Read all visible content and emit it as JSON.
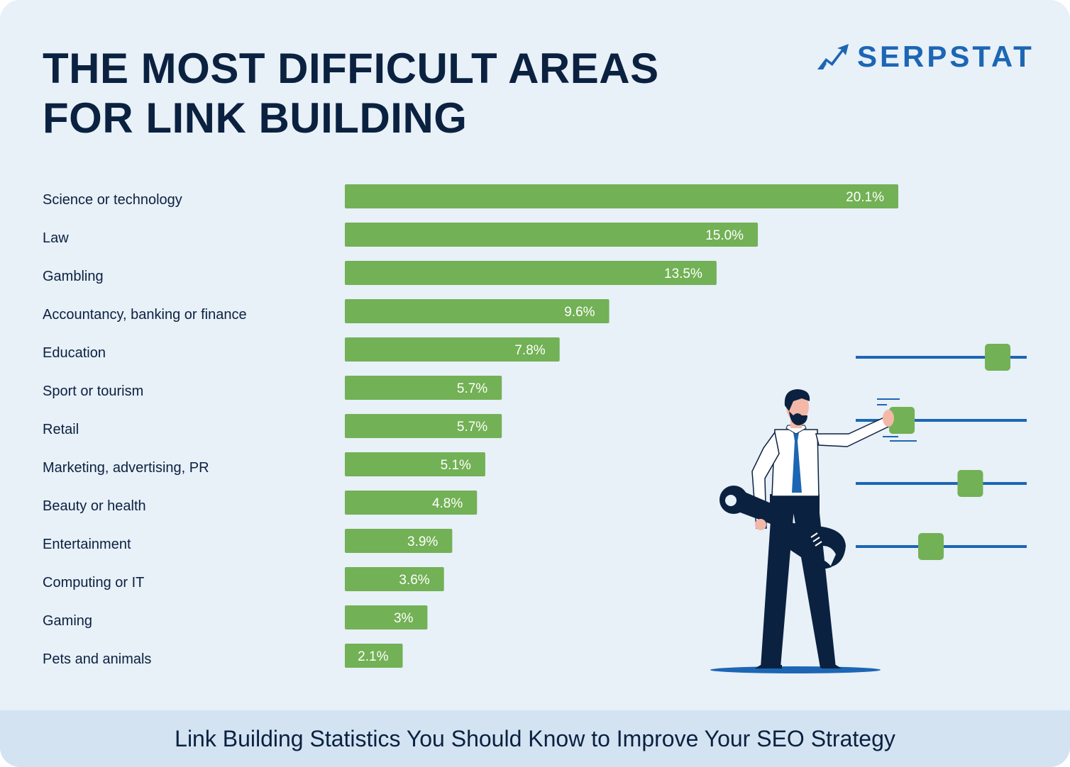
{
  "title_lines": [
    "THE MOST DIFFICULT AREAS",
    "FOR LINK BUILDING"
  ],
  "brand": {
    "name": "SERPSTAT",
    "logo_icon": "serpstat-chart-arrow-icon",
    "color": "#1c66b4"
  },
  "footer": {
    "text": "Link Building Statistics You Should Know to Improve Your SEO Strategy"
  },
  "colors": {
    "bar": "#72b155",
    "background": "#e8f0f8",
    "footer_bg": "#d3e3f2",
    "text": "#0b2140",
    "accent": "#1c66b4"
  },
  "illustration": {
    "subject": "businessman-with-wrench-adjusting-sliders-icon",
    "slider_levels": [
      0.83,
      0.27,
      0.67,
      0.44
    ]
  },
  "chart_data": {
    "type": "bar",
    "orientation": "horizontal",
    "title": "THE MOST DIFFICULT AREAS FOR LINK BUILDING",
    "xlabel": "",
    "ylabel": "",
    "grid": false,
    "legend": "none",
    "xlim": [
      0,
      20.1
    ],
    "categories": [
      "Science or technology",
      "Law",
      "Gambling",
      "Accountancy, banking or finance",
      "Education",
      "Sport or tourism",
      "Retail",
      "Marketing, advertising, PR",
      "Beauty or health",
      "Entertainment",
      "Computing or IT",
      "Gaming",
      "Pets and animals"
    ],
    "values": [
      20.1,
      15.0,
      13.5,
      9.6,
      7.8,
      5.7,
      5.7,
      5.1,
      4.8,
      3.9,
      3.6,
      3,
      2.1
    ],
    "value_labels": [
      "20.1%",
      "15.0%",
      "13.5%",
      "9.6%",
      "7.8%",
      "5.7%",
      "5.7%",
      "5.1%",
      "4.8%",
      "3.9%",
      "3.6%",
      "3%",
      "2.1%"
    ]
  }
}
